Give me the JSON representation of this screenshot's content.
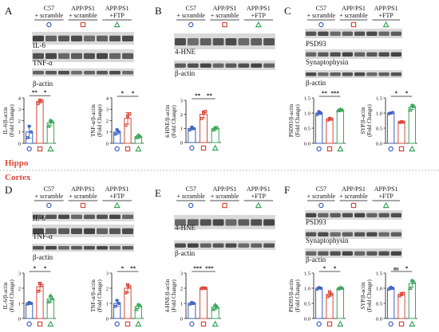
{
  "groups": [
    {
      "line1": "C57",
      "line2": "+ scramble",
      "color": "#3b5fc0",
      "symbol": "circle"
    },
    {
      "line1": "APP/PS1",
      "line2": "+ scramble",
      "color": "#d8493b",
      "symbol": "square"
    },
    {
      "line1": "APP/PS1",
      "line2": "+FTP",
      "color": "#3aa55a",
      "symbol": "triangle"
    }
  ],
  "regions": {
    "hippo": "Hippo",
    "cortex": "Cortex"
  },
  "panels": [
    {
      "letter": "A",
      "blots": [
        "IL-6",
        "TNF-α",
        "β-actin"
      ]
    },
    {
      "letter": "B",
      "blots": [
        "4-HNE",
        "β-actin"
      ]
    },
    {
      "letter": "C",
      "blots": [
        "PSD93",
        "Synaptophysin",
        "β-actin"
      ]
    },
    {
      "letter": "D",
      "blots": [
        "IL-6",
        "TNF-α",
        "β-actin"
      ]
    },
    {
      "letter": "E",
      "blots": [
        "4-HNE",
        "β-actin"
      ]
    },
    {
      "letter": "F",
      "blots": [
        "PSD93",
        "Synaptophysin",
        "β-actin"
      ]
    }
  ],
  "chart_data": [
    {
      "type": "bar",
      "panel": "A",
      "ylabel": "IL-6/β-actin (Fold Change)",
      "ylim": [
        0,
        4
      ],
      "yticks": [
        "0",
        "1",
        "2",
        "3",
        "4"
      ],
      "values": [
        1.0,
        3.7,
        1.8
      ],
      "errors": [
        0.55,
        0.15,
        0.25
      ],
      "points": [
        [
          0.5,
          1.5,
          1.0
        ],
        [
          3.5,
          3.8,
          3.75
        ],
        [
          1.5,
          2.0,
          1.9
        ]
      ],
      "sig": [
        {
          "from": 0,
          "to": 1,
          "label": "**"
        },
        {
          "from": 1,
          "to": 2,
          "label": "*"
        }
      ]
    },
    {
      "type": "bar",
      "panel": "A",
      "ylabel": "TNF-α/β-actin (Fold Change)",
      "ylim": [
        0,
        4
      ],
      "yticks": [
        "0",
        "1",
        "2",
        "3",
        "4"
      ],
      "values": [
        1.0,
        2.2,
        0.6
      ],
      "errors": [
        0.2,
        0.5,
        0.15
      ],
      "points": [
        [
          0.8,
          1.2,
          1.0
        ],
        [
          1.6,
          2.4,
          2.6
        ],
        [
          0.5,
          0.7,
          0.6
        ]
      ],
      "sig": [
        {
          "from": 0,
          "to": 1,
          "label": "*"
        },
        {
          "from": 1,
          "to": 2,
          "label": "*"
        }
      ]
    },
    {
      "type": "bar",
      "panel": "B",
      "ylabel": "4-HNE/β-actin (Fold Change)",
      "ylim": [
        0,
        3
      ],
      "yticks": [
        "0",
        "1",
        "2",
        "3"
      ],
      "values": [
        1.0,
        2.0,
        1.0
      ],
      "errors": [
        0.1,
        0.25,
        0.1
      ],
      "points": [
        [
          0.9,
          1.1,
          1.0
        ],
        [
          1.7,
          2.1,
          2.2
        ],
        [
          0.9,
          1.05,
          1.05
        ]
      ],
      "sig": [
        {
          "from": 0,
          "to": 1,
          "label": "**"
        },
        {
          "from": 1,
          "to": 2,
          "label": "**"
        }
      ]
    },
    {
      "type": "bar",
      "panel": "C",
      "ylabel": "PSD93/β-actin (Fold Change)",
      "ylim": [
        0,
        1.5
      ],
      "yticks": [
        "0.0",
        "0.5",
        "1.0",
        "1.5"
      ],
      "values": [
        1.0,
        0.8,
        1.1
      ],
      "errors": [
        0.05,
        0.04,
        0.04
      ],
      "points": [
        [
          0.95,
          1.05,
          1.0
        ],
        [
          0.77,
          0.82,
          0.8
        ],
        [
          1.08,
          1.12,
          1.1
        ]
      ],
      "sig": [
        {
          "from": 0,
          "to": 1,
          "label": "**"
        },
        {
          "from": 1,
          "to": 2,
          "label": "***"
        }
      ]
    },
    {
      "type": "bar",
      "panel": "C",
      "ylabel": "SYP/β-actin (Fold Change)",
      "ylim": [
        0,
        1.5
      ],
      "yticks": [
        "0.0",
        "0.5",
        "1.0",
        "1.5"
      ],
      "values": [
        1.0,
        0.7,
        1.2
      ],
      "errors": [
        0.03,
        0.02,
        0.08
      ],
      "points": [
        [
          0.98,
          1.0,
          1.02
        ],
        [
          0.69,
          0.71,
          0.7
        ],
        [
          1.1,
          1.25,
          1.22
        ]
      ],
      "sig": [
        {
          "from": 0,
          "to": 1,
          "label": "*"
        },
        {
          "from": 1,
          "to": 2,
          "label": "*"
        }
      ]
    },
    {
      "type": "bar",
      "panel": "D",
      "ylabel": "IL-6/β-actin (Fold Change)",
      "ylim": [
        0,
        3
      ],
      "yticks": [
        "0",
        "1",
        "2",
        "3"
      ],
      "values": [
        1.0,
        2.1,
        1.3
      ],
      "errors": [
        0.08,
        0.3,
        0.2
      ],
      "points": [
        [
          0.95,
          1.05,
          1.0
        ],
        [
          1.8,
          2.3,
          2.2
        ],
        [
          1.1,
          1.5,
          1.3
        ]
      ],
      "sig": [
        {
          "from": 0,
          "to": 1,
          "label": "*"
        },
        {
          "from": 1,
          "to": 2,
          "label": "*"
        }
      ]
    },
    {
      "type": "bar",
      "panel": "D",
      "ylabel": "TNF-α/β-actin (Fold Change)",
      "ylim": [
        0,
        3
      ],
      "yticks": [
        "0",
        "1",
        "2",
        "3"
      ],
      "values": [
        1.0,
        2.0,
        0.8
      ],
      "errors": [
        0.2,
        0.3,
        0.15
      ],
      "points": [
        [
          0.8,
          1.2,
          1.0
        ],
        [
          1.7,
          2.2,
          2.1
        ],
        [
          0.6,
          0.9,
          0.85
        ]
      ],
      "sig": [
        {
          "from": 0,
          "to": 1,
          "label": "*"
        },
        {
          "from": 1,
          "to": 2,
          "label": "**"
        }
      ]
    },
    {
      "type": "bar",
      "panel": "E",
      "ylabel": "4-HNE/β-actin (Fold Change)",
      "ylim": [
        0,
        3
      ],
      "yticks": [
        "0",
        "1",
        "2",
        "3"
      ],
      "values": [
        1.0,
        2.0,
        0.75
      ],
      "errors": [
        0.08,
        0.04,
        0.15
      ],
      "points": [
        [
          0.95,
          1.05,
          1.0
        ],
        [
          1.98,
          2.02,
          2.0
        ],
        [
          0.6,
          0.9,
          0.75
        ]
      ],
      "sig": [
        {
          "from": 0,
          "to": 1,
          "label": "***"
        },
        {
          "from": 1,
          "to": 2,
          "label": "***"
        }
      ]
    },
    {
      "type": "bar",
      "panel": "F",
      "ylabel": "PSD93/β-actin (Fold Change)",
      "ylim": [
        0,
        1.5
      ],
      "yticks": [
        "0.0",
        "0.5",
        "1.0",
        "1.5"
      ],
      "values": [
        1.0,
        0.8,
        1.0
      ],
      "errors": [
        0.03,
        0.07,
        0.02
      ],
      "points": [
        [
          0.97,
          1.02,
          1.0
        ],
        [
          0.72,
          0.88,
          0.8
        ],
        [
          0.98,
          1.02,
          1.0
        ]
      ],
      "sig": [
        {
          "from": 0,
          "to": 1,
          "label": "*"
        },
        {
          "from": 1,
          "to": 2,
          "label": "*"
        }
      ]
    },
    {
      "type": "bar",
      "panel": "F",
      "ylabel": "SYP/β-actin (Fold Change)",
      "ylim": [
        0,
        1.5
      ],
      "yticks": [
        "0.0",
        "0.5",
        "1.0",
        "1.5"
      ],
      "values": [
        1.0,
        0.8,
        1.15
      ],
      "errors": [
        0.04,
        0.05,
        0.12
      ],
      "points": [
        [
          0.97,
          1.03,
          1.0
        ],
        [
          0.75,
          0.82,
          0.83
        ],
        [
          1.0,
          1.25,
          1.2
        ]
      ],
      "sig": [
        {
          "from": 0,
          "to": 1,
          "label": "ns"
        },
        {
          "from": 1,
          "to": 2,
          "label": "*"
        }
      ]
    }
  ]
}
